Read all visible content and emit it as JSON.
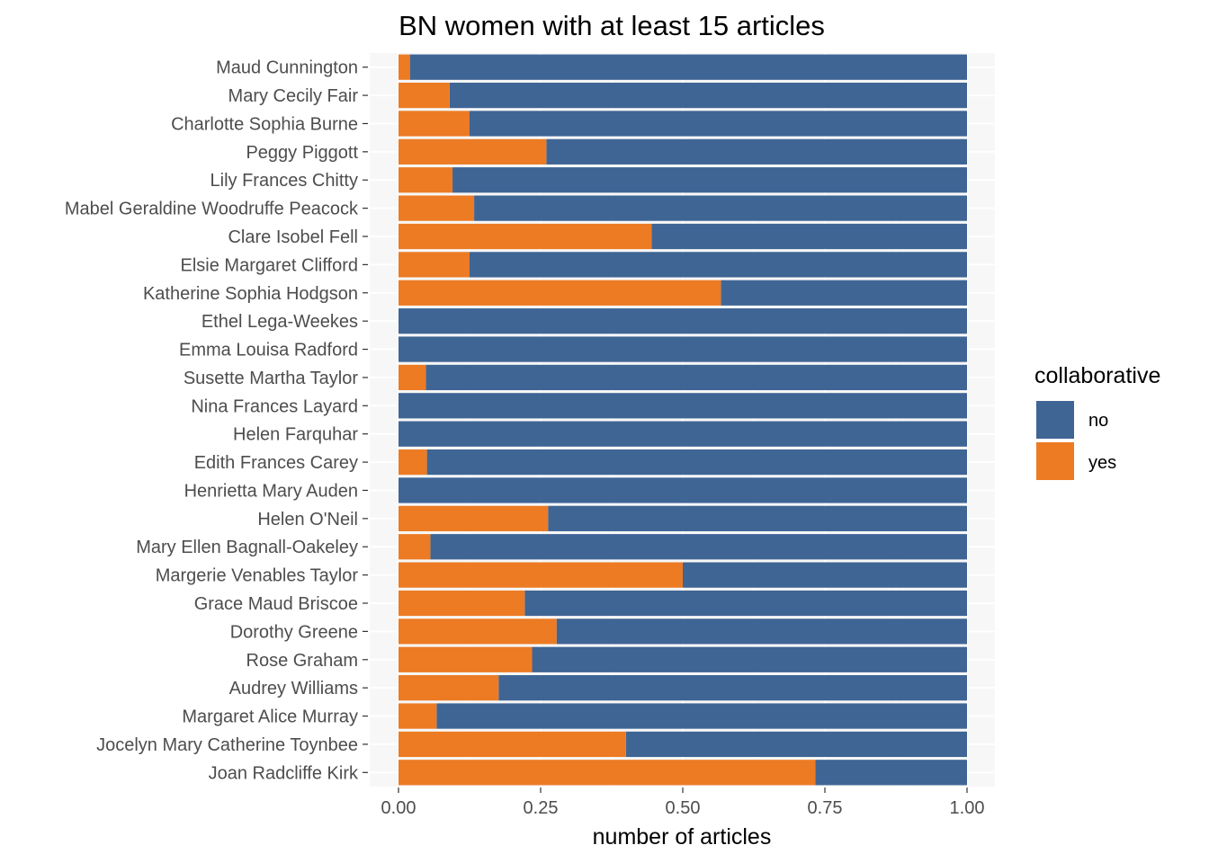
{
  "chart_data": {
    "type": "bar",
    "orientation": "horizontal",
    "stacked": true,
    "title": "BN women with at least 15 articles",
    "xlabel": "number of articles",
    "ylabel": "",
    "xlim": [
      0,
      1
    ],
    "x_ticks": [
      "0.00",
      "0.25",
      "0.50",
      "0.75",
      "1.00"
    ],
    "x_tick_values": [
      0,
      0.25,
      0.5,
      0.75,
      1
    ],
    "grid": true,
    "legend": {
      "title": "collaborative",
      "position": "right",
      "entries": [
        {
          "label": "no",
          "color": "#3f6595"
        },
        {
          "label": "yes",
          "color": "#ec7b24"
        }
      ]
    },
    "categories": [
      "Maud Cunnington",
      "Mary Cecily Fair",
      "Charlotte Sophia Burne",
      "Peggy Piggott",
      "Lily Frances Chitty",
      "Mabel Geraldine Woodruffe Peacock",
      "Clare Isobel Fell",
      "Elsie Margaret Clifford",
      "Katherine Sophia Hodgson",
      "Ethel Lega-Weekes",
      "Emma Louisa Radford",
      "Susette Martha Taylor",
      "Nina Frances Layard",
      "Helen Farquhar",
      "Edith Frances Carey",
      "Henrietta Mary Auden",
      "Helen O'Neil",
      "Mary Ellen Bagnall-Oakeley",
      "Margerie Venables Taylor",
      "Grace Maud Briscoe",
      "Dorothy Greene",
      "Rose Graham",
      "Audrey Williams",
      "Margaret Alice Murray",
      "Jocelyn Mary Catherine Toynbee",
      "Joan Radcliffe Kirk"
    ],
    "series": [
      {
        "name": "yes",
        "values": [
          0.02,
          0.09,
          0.125,
          0.26,
          0.095,
          0.133,
          0.445,
          0.125,
          0.567,
          0,
          0,
          0.048,
          0,
          0,
          0.05,
          0,
          0.263,
          0.056,
          0.5,
          0.222,
          0.278,
          0.235,
          0.176,
          0.067,
          0.4,
          0.733
        ]
      },
      {
        "name": "no",
        "values": [
          0.98,
          0.91,
          0.875,
          0.74,
          0.905,
          0.867,
          0.555,
          0.875,
          0.433,
          1,
          1,
          0.952,
          1,
          1,
          0.95,
          1,
          0.737,
          0.944,
          0.5,
          0.778,
          0.722,
          0.765,
          0.824,
          0.933,
          0.6,
          0.267
        ]
      }
    ],
    "colors": {
      "no": "#3f6595",
      "yes": "#ec7b24",
      "panel": "#f7f7f7",
      "grid": "#ffffff"
    }
  }
}
